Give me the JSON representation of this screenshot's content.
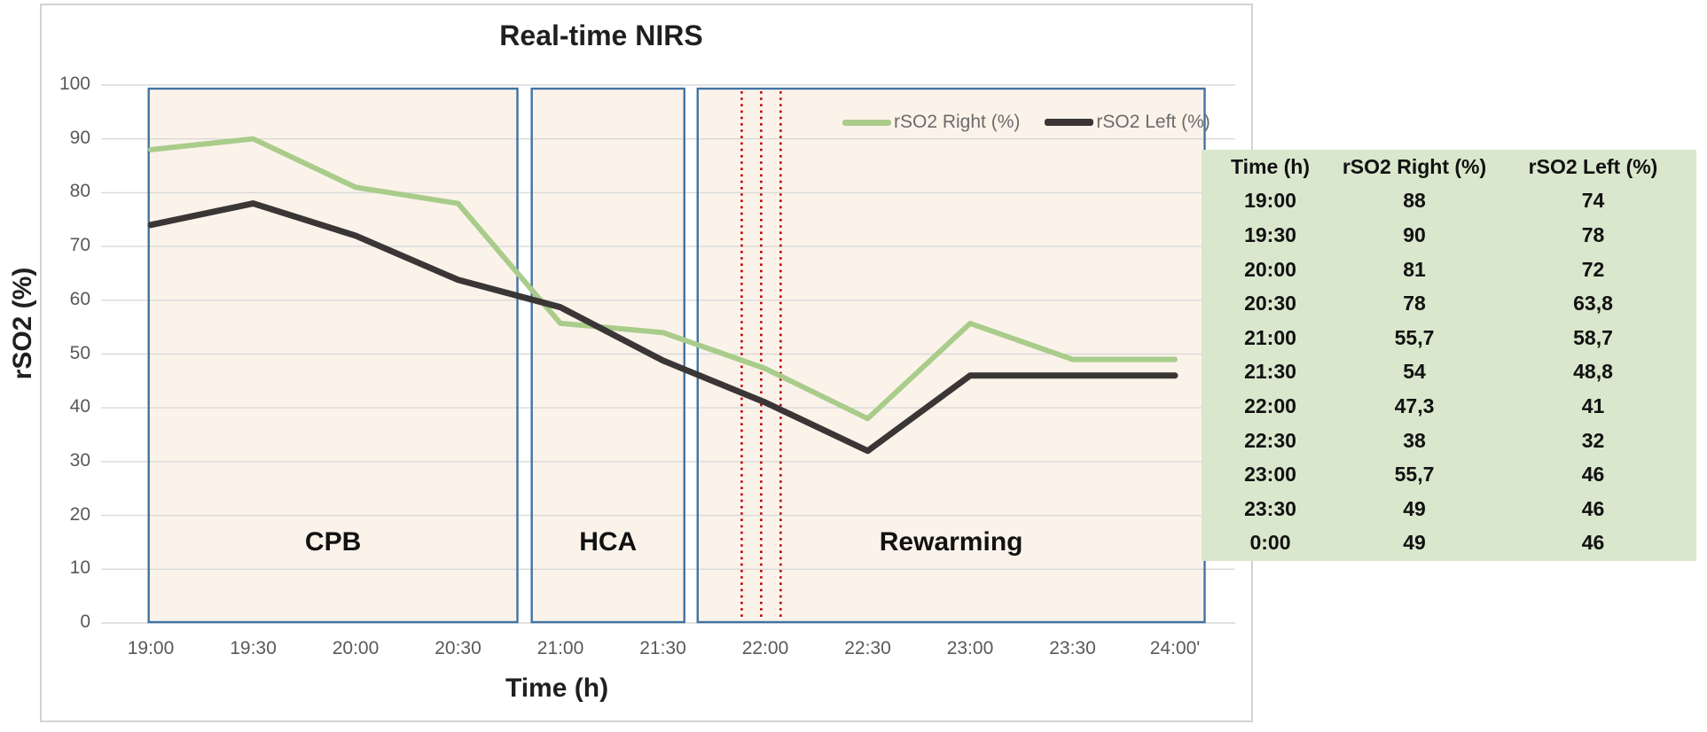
{
  "figure": {
    "background": "#ffffff",
    "frame_border_color": "#d3d3d3"
  },
  "colors": {
    "series_right": "#a9cc8b",
    "series_left": "#3a3636",
    "phase_box_border": "#4173a3",
    "phase_box_fill": "#fbf3ea",
    "event_line": "#c00000",
    "gridline": "#d9d9d9",
    "tick_text": "#595959",
    "legend_text": "#6b6b6b",
    "table_background": "#d9e7cd"
  },
  "chart_data": {
    "type": "line",
    "title": "Real-time NIRS",
    "xlabel": "Time (h)",
    "ylabel": "rSO2 (%)",
    "ylim": [
      0,
      100
    ],
    "yticks": [
      0,
      10,
      20,
      30,
      40,
      50,
      60,
      70,
      80,
      90,
      100
    ],
    "grid": true,
    "legend_position": "top-right-inside",
    "categories": [
      "19:00",
      "19:30",
      "20:00",
      "20:30",
      "21:00",
      "21:30",
      "22:00",
      "22:30",
      "23:00",
      "23:30",
      "24:00'"
    ],
    "series": [
      {
        "name": "rSO2 Right (%)",
        "color": "#a9cc8b",
        "width": 6,
        "values": [
          88,
          90,
          81,
          78,
          55.7,
          54,
          47.3,
          38,
          55.7,
          49,
          49
        ]
      },
      {
        "name": "rSO2 Left (%)",
        "color": "#3a3636",
        "width": 7,
        "values": [
          74,
          78,
          72,
          63.8,
          58.7,
          48.8,
          41,
          32,
          46,
          46,
          46
        ]
      }
    ],
    "phases": [
      {
        "label": "CPB",
        "from_index": -0.02,
        "to_index": 3.58
      },
      {
        "label": "HCA",
        "from_index": 3.72,
        "to_index": 5.21
      },
      {
        "label": "Rewarming",
        "from_index": 5.34,
        "to_index": 10.29
      }
    ],
    "event_lines": {
      "style": "dotted",
      "color": "#c00000",
      "x_indices": [
        5.77,
        5.96,
        6.15
      ]
    }
  },
  "table": {
    "headers": [
      "Time (h)",
      "rSO2 Right (%)",
      "rSO2 Left (%)"
    ],
    "rows": [
      [
        "19:00",
        "88",
        "74"
      ],
      [
        "19:30",
        "90",
        "78"
      ],
      [
        "20:00",
        "81",
        "72"
      ],
      [
        "20:30",
        "78",
        "63,8"
      ],
      [
        "21:00",
        "55,7",
        "58,7"
      ],
      [
        "21:30",
        "54",
        "48,8"
      ],
      [
        "22:00",
        "47,3",
        "41"
      ],
      [
        "22:30",
        "38",
        "32"
      ],
      [
        "23:00",
        "55,7",
        "46"
      ],
      [
        "23:30",
        "49",
        "46"
      ],
      [
        "0:00",
        "49",
        "46"
      ]
    ]
  }
}
